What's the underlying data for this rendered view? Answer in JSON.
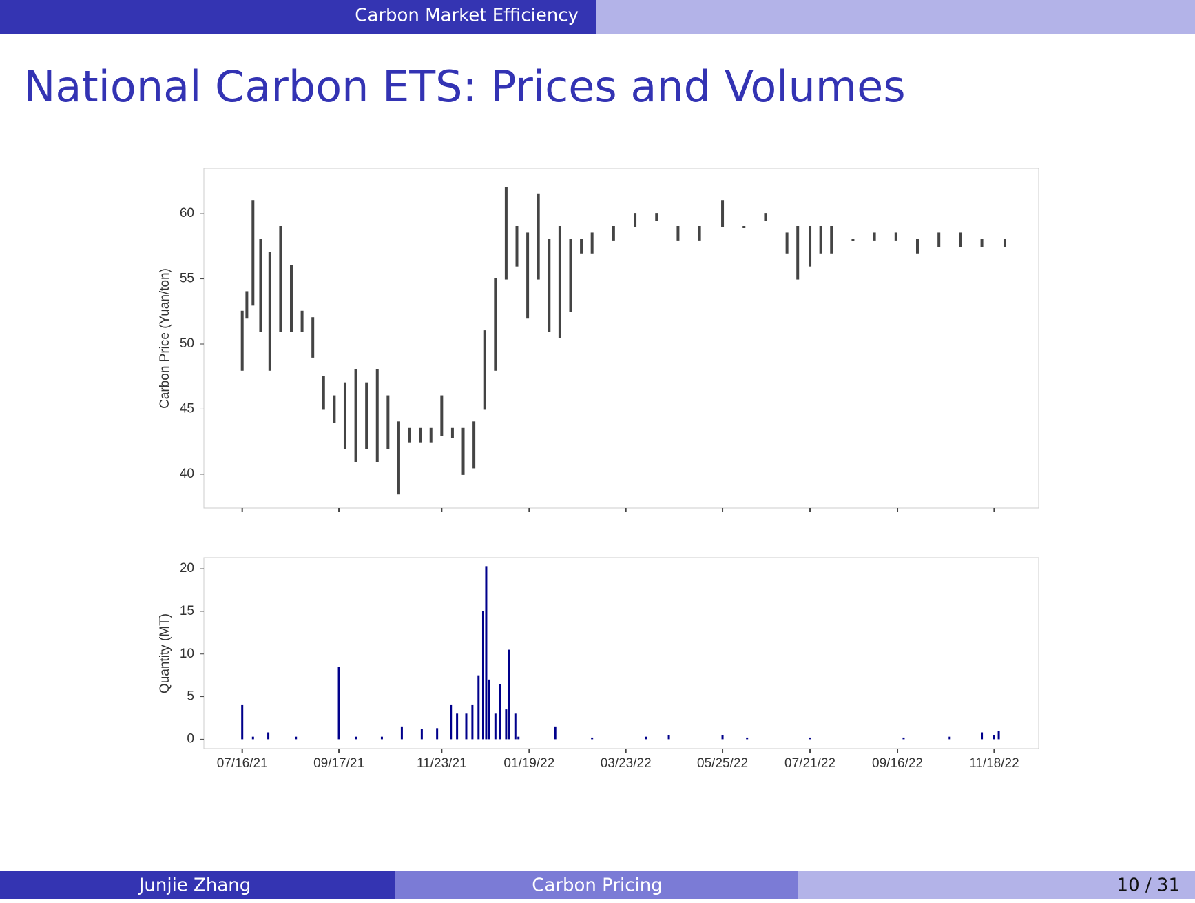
{
  "header": {
    "section": "Carbon Market Efficiency"
  },
  "title": "National Carbon ETS: Prices and Volumes",
  "chart_data": [
    {
      "type": "range",
      "y_label": "Carbon Price (Yuan/ton)",
      "color": "#444444",
      "x": [
        "07/16/21",
        "07/19/21",
        "07/23/21",
        "07/28/21",
        "08/03/21",
        "08/10/21",
        "08/17/21",
        "08/24/21",
        "08/31/21",
        "09/07/21",
        "09/14/21",
        "09/21/21",
        "09/28/21",
        "10/05/21",
        "10/12/21",
        "10/19/21",
        "10/26/21",
        "11/02/21",
        "11/09/21",
        "11/16/21",
        "11/23/21",
        "11/30/21",
        "12/07/21",
        "12/14/21",
        "12/21/21",
        "12/28/21",
        "01/04/22",
        "01/11/22",
        "01/18/22",
        "01/25/22",
        "02/01/22",
        "02/08/22",
        "02/15/22",
        "02/22/22",
        "03/01/22",
        "03/15/22",
        "03/29/22",
        "04/12/22",
        "04/26/22",
        "05/10/22",
        "05/25/22",
        "06/08/22",
        "06/22/22",
        "07/06/22",
        "07/13/22",
        "07/21/22",
        "07/28/22",
        "08/04/22",
        "08/18/22",
        "09/01/22",
        "09/15/22",
        "09/29/22",
        "10/13/22",
        "10/27/22",
        "11/10/22",
        "11/25/22"
      ],
      "low": [
        48,
        52,
        53,
        51,
        48,
        51,
        51,
        51,
        49,
        45,
        44,
        42,
        41,
        42,
        41,
        42,
        38.5,
        42.5,
        42.5,
        42.5,
        43,
        42.8,
        40,
        40.5,
        45,
        48,
        55,
        56,
        52,
        55,
        51,
        50.5,
        52.5,
        57,
        57,
        58,
        59,
        59.5,
        58,
        58,
        59,
        59,
        59.5,
        57,
        55,
        56,
        57,
        57,
        58,
        58,
        58,
        57,
        57.5,
        57.5,
        57.5,
        57.5
      ],
      "high": [
        52.5,
        54,
        61,
        58,
        57,
        59,
        56,
        52.5,
        52,
        47.5,
        46,
        47,
        48,
        47,
        48,
        46,
        44,
        43.5,
        43.5,
        43.5,
        46,
        43.5,
        43.5,
        44,
        51,
        55,
        62,
        59,
        58.5,
        61.5,
        58,
        59,
        58,
        58,
        58.5,
        59,
        60,
        60,
        59,
        59,
        61,
        59,
        60,
        58.5,
        59,
        59,
        59,
        59,
        58,
        58.5,
        58.5,
        58,
        58.5,
        58.5,
        58,
        58
      ],
      "xlim": [
        "06/21/21",
        "12/17/22"
      ],
      "ylim": [
        37.4,
        63.5
      ],
      "yticks": [
        40,
        45,
        50,
        55,
        60
      ]
    },
    {
      "type": "bar",
      "y_label": "Quantity (MT)",
      "color": "#00008b",
      "x": [
        "07/16/21",
        "07/23/21",
        "08/02/21",
        "08/20/21",
        "09/17/21",
        "09/28/21",
        "10/15/21",
        "10/28/21",
        "11/10/21",
        "11/20/21",
        "11/29/21",
        "12/03/21",
        "12/09/21",
        "12/13/21",
        "12/17/21",
        "12/20/21",
        "12/22/21",
        "12/24/21",
        "12/28/21",
        "12/31/21",
        "01/04/22",
        "01/06/22",
        "01/10/22",
        "01/12/22",
        "02/05/22",
        "03/01/22",
        "04/05/22",
        "04/20/22",
        "05/25/22",
        "06/10/22",
        "07/21/22",
        "09/20/22",
        "10/20/22",
        "11/10/22",
        "11/18/22",
        "11/21/22"
      ],
      "values": [
        4,
        0.3,
        0.8,
        0.3,
        8.5,
        0.3,
        0.3,
        1.5,
        1.2,
        1.3,
        4,
        3,
        3,
        4,
        7.5,
        15,
        20.3,
        7,
        3,
        6.5,
        3.5,
        10.5,
        3,
        0.3,
        1.5,
        0.2,
        0.3,
        0.5,
        0.5,
        0.2,
        0.2,
        0.2,
        0.3,
        0.8,
        0.5,
        1
      ],
      "xlim": [
        "06/21/21",
        "12/17/22"
      ],
      "ylim": [
        -1.1,
        21.3
      ],
      "yticks": [
        0,
        5,
        10,
        15,
        20
      ],
      "xticks": [
        "07/16/21",
        "09/17/21",
        "11/23/21",
        "01/19/22",
        "03/23/22",
        "05/25/22",
        "07/21/22",
        "09/16/22",
        "11/18/22"
      ]
    }
  ],
  "footer": {
    "author": "Junjie Zhang",
    "talk": "Carbon Pricing",
    "page": "10 / 31"
  }
}
